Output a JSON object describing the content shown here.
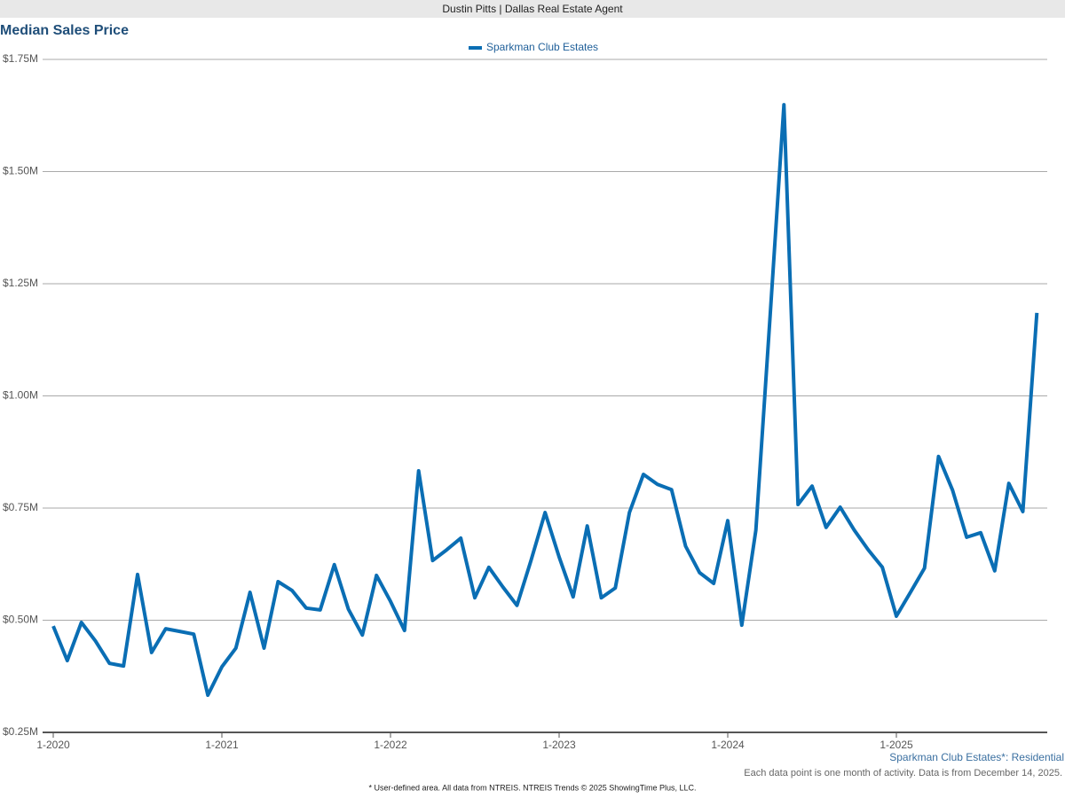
{
  "header": "Dustin Pitts | Dallas Real Estate Agent",
  "chart_data": {
    "type": "line",
    "title": "Median Sales Price",
    "categories": [
      "1-2020",
      null,
      null,
      null,
      null,
      null,
      null,
      null,
      null,
      null,
      null,
      null,
      "1-2021",
      null,
      null,
      null,
      null,
      null,
      null,
      null,
      null,
      null,
      null,
      null,
      "1-2022",
      null,
      null,
      null,
      null,
      null,
      null,
      null,
      null,
      null,
      null,
      null,
      "1-2023",
      null,
      null,
      null,
      null,
      null,
      null,
      null,
      null,
      null,
      null,
      null,
      "1-2024",
      null,
      null,
      null,
      null,
      null,
      null,
      null,
      null,
      null,
      null,
      null,
      "1-2025",
      null,
      null,
      null,
      null,
      null,
      null,
      null,
      null,
      null,
      null
    ],
    "series": [
      {
        "name": "Sparkman Club Estates",
        "color": "#0a6eb4",
        "values": [
          487000,
          410000,
          495000,
          454000,
          404000,
          398000,
          602000,
          428000,
          481000,
          475000,
          469000,
          333000,
          396000,
          438000,
          562000,
          438000,
          586000,
          566000,
          527000,
          523000,
          624000,
          525000,
          467000,
          600000,
          542000,
          477000,
          833000,
          633000,
          657000,
          683000,
          550000,
          618000,
          574000,
          533000,
          633000,
          740000,
          641000,
          552000,
          710000,
          550000,
          572000,
          740000,
          825000,
          803000,
          791000,
          665000,
          606000,
          582000,
          722000,
          489000,
          701000,
          1171000,
          1649000,
          758000,
          799000,
          707000,
          752000,
          701000,
          657000,
          618000,
          509000,
          562000,
          616000,
          865000,
          790000,
          685000,
          695000,
          610000,
          805000,
          742000,
          1185000
        ]
      }
    ],
    "ylim": [
      250000,
      1750000
    ],
    "yticks": [
      {
        "value": 250000,
        "label": "$0.25M"
      },
      {
        "value": 500000,
        "label": "$0.50M"
      },
      {
        "value": 750000,
        "label": "$0.75M"
      },
      {
        "value": 1000000,
        "label": "$1.00M"
      },
      {
        "value": 1250000,
        "label": "$1.25M"
      },
      {
        "value": 1500000,
        "label": "$1.50M"
      },
      {
        "value": 1750000,
        "label": "$1.75M"
      }
    ],
    "grid": true,
    "legend": "top",
    "annotations": [
      "Sparkman Club Estates*: Residential",
      "Each data point is one month of activity. Data is from December 14, 2025."
    ]
  },
  "footnote": "* User-defined area. All data from NTREIS. NTREIS Trends © 2025 ShowingTime Plus, LLC."
}
